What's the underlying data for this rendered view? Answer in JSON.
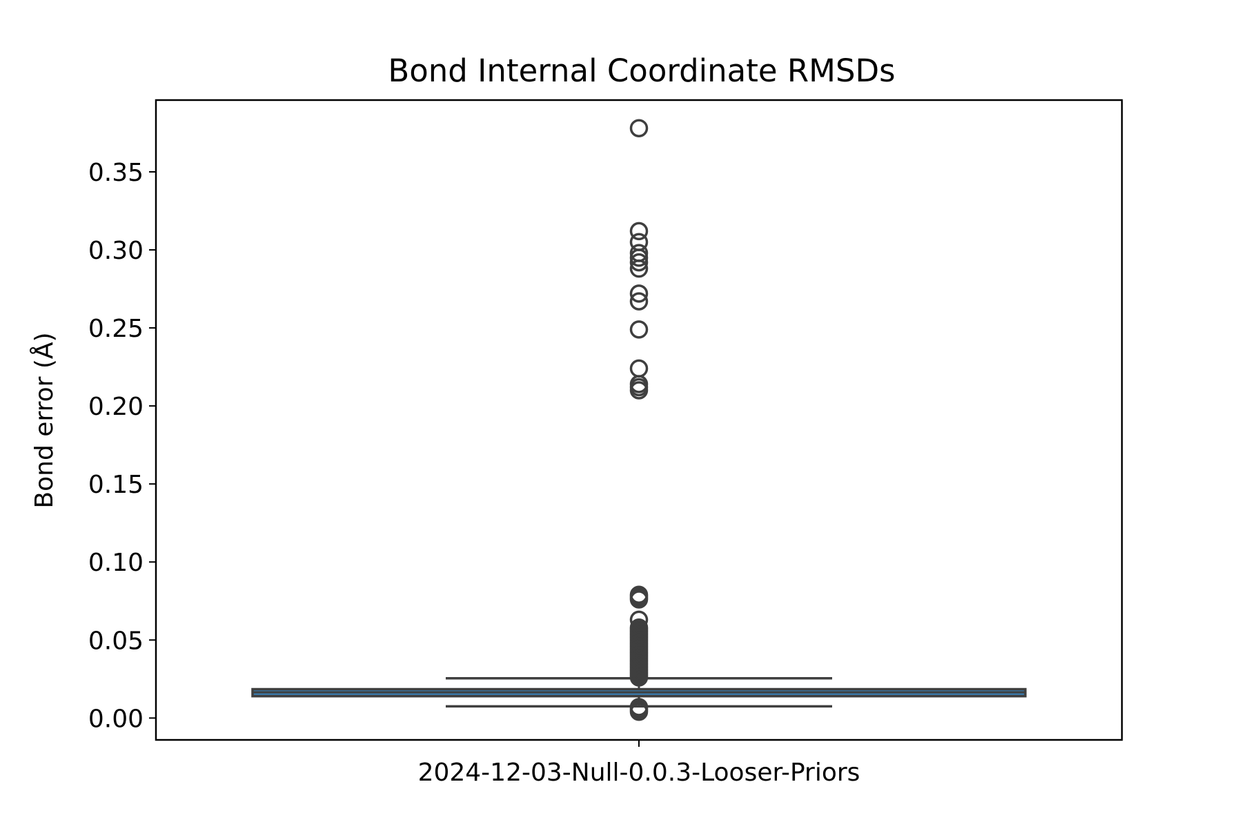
{
  "chart_data": {
    "type": "box",
    "title": "Bond Internal Coordinate RMSDs",
    "xlabel": "",
    "ylabel": "Bond error (Å)",
    "categories": [
      "2024-12-03-Null-0.0.3-Looser-Priors"
    ],
    "ylim": [
      -0.014,
      0.396
    ],
    "yticks": [
      0.0,
      0.05,
      0.1,
      0.15,
      0.2,
      0.25,
      0.3,
      0.35
    ],
    "ytick_labels": [
      "0.00",
      "0.05",
      "0.10",
      "0.15",
      "0.20",
      "0.25",
      "0.30",
      "0.35"
    ],
    "grid": false,
    "boxes": [
      {
        "category": "2024-12-03-Null-0.0.3-Looser-Priors",
        "whisker_low": 0.0075,
        "q1": 0.014,
        "median": 0.0165,
        "q3": 0.0185,
        "whisker_high": 0.0255,
        "outliers": [
          0.378,
          0.312,
          0.305,
          0.298,
          0.295,
          0.292,
          0.288,
          0.272,
          0.267,
          0.249,
          0.224,
          0.214,
          0.212,
          0.21,
          0.079,
          0.078,
          0.077,
          0.076,
          0.063,
          0.058,
          0.057,
          0.056,
          0.055,
          0.054,
          0.053,
          0.052,
          0.051,
          0.05,
          0.049,
          0.048,
          0.047,
          0.046,
          0.045,
          0.044,
          0.043,
          0.042,
          0.041,
          0.04,
          0.039,
          0.038,
          0.037,
          0.036,
          0.035,
          0.034,
          0.033,
          0.032,
          0.031,
          0.03,
          0.029,
          0.028,
          0.027,
          0.026,
          0.007,
          0.006,
          0.005,
          0.004
        ]
      }
    ],
    "colors": {
      "box_fill": "#3a78a8",
      "line": "#3f3f3f",
      "median": "#3f3f3f",
      "axes": "#000000"
    }
  }
}
